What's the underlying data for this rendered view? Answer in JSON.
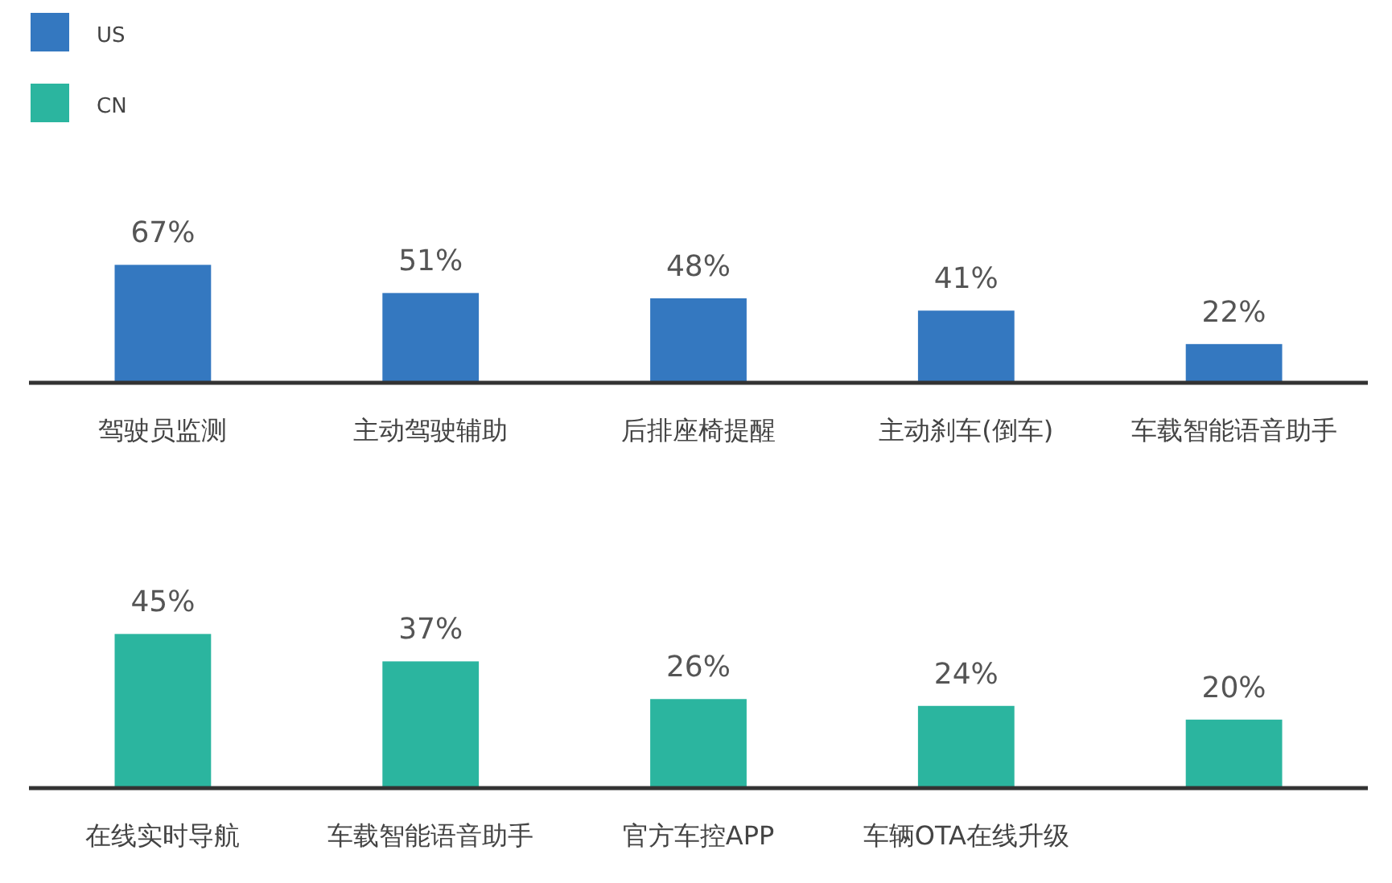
{
  "chart_data": [
    {
      "type": "bar",
      "categories": [
        "驾驶员监测",
        "主动驾驶辅助",
        "后排座椅提醒",
        "主动刹车(倒车)",
        "车载智能语音助手"
      ],
      "series": [
        {
          "name": "US",
          "color": "#3478c0",
          "values": [
            67,
            51,
            48,
            41,
            22
          ],
          "value_labels": [
            "67%",
            "51%",
            "48%",
            "41%",
            "22%"
          ]
        }
      ],
      "legend": "top left"
    },
    {
      "type": "bar",
      "categories": [
        "在线实时导航",
        "车载智能语音助手",
        "官方车控APP",
        "车辆OTA在线升级",
        null
      ],
      "series": [
        {
          "name": "CN",
          "color": "#2bb59f",
          "values": [
            45,
            37,
            26,
            24,
            20
          ],
          "value_labels": [
            "45%",
            "37%",
            "26%",
            "24%",
            "20%"
          ]
        }
      ],
      "legend": "top left"
    }
  ]
}
